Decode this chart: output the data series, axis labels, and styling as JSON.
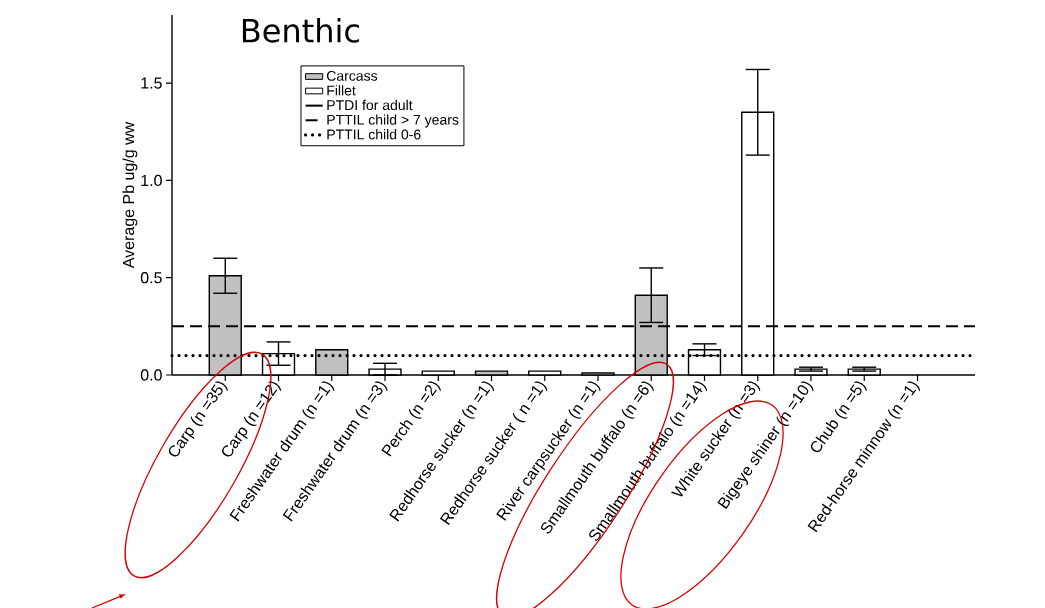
{
  "chart_data": {
    "type": "bar",
    "title": "Benthic",
    "ylabel": "Average Pb  ug/g ww",
    "categories": [
      "Carp (n =35)",
      "Carp (n =12)",
      "Freshwater drum (n =1)",
      "Freshwater drum (n =3)",
      "Perch (n =2)",
      "Redhorse sucker (n =1)",
      "Redhorse sucker ( n =1)",
      "River carpsucker (n =1)",
      "Smallmouth buffalo (n =6)",
      "Smallmouth buffalo (n =14)",
      "White sucker (n =3)",
      "Bigeye shiner (n =10)",
      "Chub (n =5)",
      "Red-horse minnow (n =1)"
    ],
    "series": [
      {
        "name": "Carcass",
        "color": "#c0c0c0",
        "values": [
          0.51,
          null,
          0.13,
          null,
          null,
          0.02,
          null,
          null,
          0.41,
          null,
          null,
          null,
          null,
          null
        ],
        "errors": [
          0.09,
          null,
          null,
          null,
          null,
          null,
          null,
          null,
          0.14,
          null,
          null,
          null,
          null,
          null
        ]
      },
      {
        "name": "Fillet",
        "color": "#ffffff",
        "values": [
          null,
          0.11,
          null,
          0.03,
          0.02,
          null,
          0.02,
          0.01,
          null,
          0.13,
          1.35,
          0.03,
          0.03,
          null
        ],
        "errors": [
          null,
          0.06,
          null,
          0.03,
          null,
          null,
          null,
          null,
          null,
          0.03,
          0.22,
          0.01,
          0.01,
          null
        ]
      },
      {
        "name": "PTDI for adult",
        "type": "line",
        "color": "#000000",
        "line_style": "solid",
        "values": [
          null,
          null,
          null,
          null,
          null,
          null,
          null,
          null,
          null,
          null,
          null,
          null,
          null,
          null
        ]
      }
    ],
    "ref_lines": [
      {
        "axis": "y",
        "value": 0.25,
        "label": "PTTIL child > 7 years",
        "line_style": "dashed",
        "color": "#000000"
      },
      {
        "axis": "y",
        "value": 0.1,
        "label": "PTTIL child 0-6",
        "line_style": "dotted",
        "color": "#000000"
      }
    ],
    "ylim": [
      0,
      1.85
    ],
    "yticks": [
      {
        "value": 0,
        "label": "0.0"
      },
      {
        "value": 0.5,
        "label": "0.5"
      },
      {
        "value": 1.0,
        "label": "1.0"
      },
      {
        "value": 1.5,
        "label": "1.5"
      }
    ],
    "legend": "top",
    "grid": false
  }
}
